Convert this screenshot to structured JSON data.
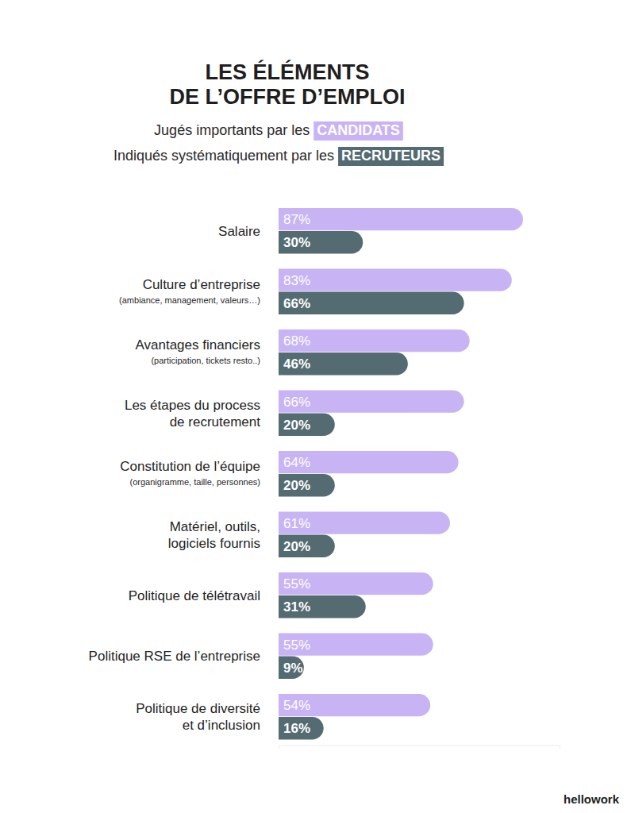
{
  "chart_data": {
    "type": "bar",
    "orientation": "horizontal",
    "title": [
      "LES ÉLÉMENTS",
      "DE L’OFFRE D’EMPLOI"
    ],
    "subtitle": [
      "Jugés importants par les",
      "Indiqués systématiquement par les"
    ],
    "categories": [
      "Salaire",
      "Culture d’entreprise",
      "Avantages financiers",
      "Les étapes du process\nde recrutement",
      "Constitution de l’équipe",
      "Matériel, outils,\nlogiciels fournis",
      "Politique de télétravail",
      "Politique RSE de l’entreprise",
      "Politique de diversité\net d’inclusion"
    ],
    "category_details": [
      null,
      "(ambiance, management, valeurs…)",
      "(participation, tickets resto..)",
      null,
      "(organigramme, taille, personnes)",
      null,
      null,
      null,
      null
    ],
    "series": [
      {
        "name": "CANDIDATS",
        "color": "#c8b4f4",
        "values": [
          87,
          83,
          68,
          66,
          64,
          61,
          55,
          55,
          54
        ],
        "value_labels": [
          "87%",
          "83%",
          "68%",
          "66%",
          "64%",
          "61%",
          "55%",
          "55%",
          "54%"
        ]
      },
      {
        "name": "RECRUTEURS",
        "color": "#546b72",
        "values": [
          30,
          66,
          46,
          20,
          20,
          20,
          31,
          9,
          16
        ],
        "value_labels": [
          "30%",
          "66%",
          "46%",
          "20%",
          "20%",
          "20%",
          "31%",
          "9%",
          "16%"
        ]
      }
    ],
    "xlim": [
      0,
      100
    ],
    "xticks": [
      0,
      100
    ],
    "tick_labels": false,
    "data_labels": true,
    "annotations": [
      "hellowork"
    ]
  }
}
